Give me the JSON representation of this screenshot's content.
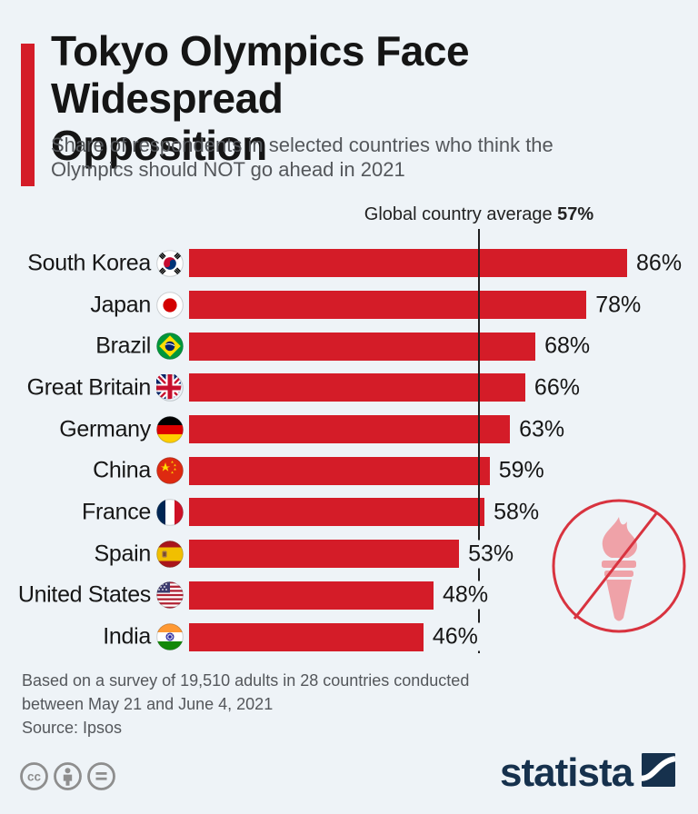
{
  "header": {
    "title": "Tokyo Olympics Face Widespread Opposition",
    "subtitle": "Share of respondents in selected countries who think the Olympics should NOT go ahead in 2021"
  },
  "chart_data": {
    "type": "bar",
    "orientation": "horizontal",
    "title": "Tokyo Olympics Face Widespread Opposition",
    "unit": "%",
    "categories": [
      "South Korea",
      "Japan",
      "Brazil",
      "Great Britain",
      "Germany",
      "China",
      "France",
      "Spain",
      "United States",
      "India"
    ],
    "values": [
      86,
      78,
      68,
      66,
      63,
      59,
      58,
      53,
      48,
      46
    ],
    "flags": [
      "south-korea-flag-icon",
      "japan-flag-icon",
      "brazil-flag-icon",
      "great-britain-flag-icon",
      "germany-flag-icon",
      "china-flag-icon",
      "france-flag-icon",
      "spain-flag-icon",
      "united-states-flag-icon",
      "india-flag-icon"
    ],
    "average": {
      "label": "Global country average",
      "value": "57%",
      "numeric": 57
    },
    "xlim": [
      0,
      100
    ],
    "grid": false,
    "legend": "none",
    "bar_color": "#d41c28"
  },
  "annotations": {
    "torch_icon": "no-olympics-torch-icon"
  },
  "footer": {
    "note": "Based on a survey of 19,510 adults in 28 countries conducted between May 21 and June 4, 2021",
    "source": "Source: Ipsos",
    "brand": "statista",
    "license_icons": [
      "cc-icon",
      "attribution-icon",
      "equal-icon"
    ]
  },
  "colors": {
    "background": "#eef3f7",
    "bar_red": "#d41c28",
    "brand_navy": "#16314d",
    "text_gray": "#54575b",
    "torch_pink": "#efa2a8",
    "torch_red": "#d8333f",
    "license_gray": "#8e8e8e"
  }
}
